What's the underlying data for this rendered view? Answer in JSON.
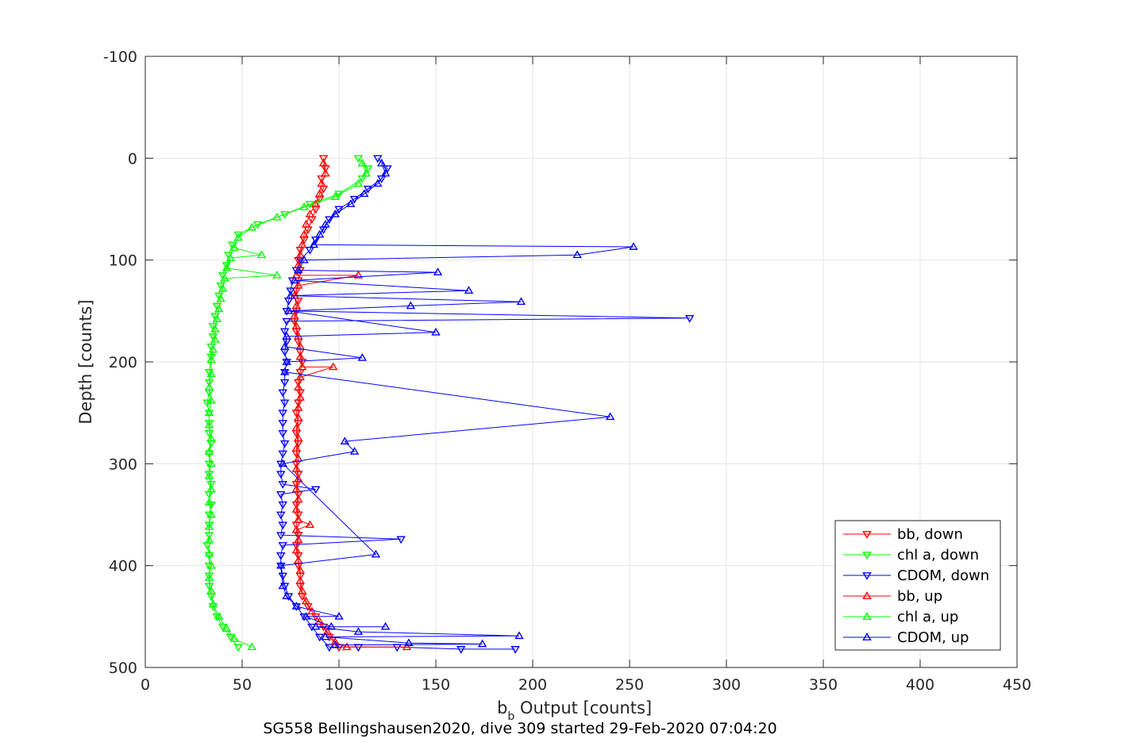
{
  "caption": "SG558 Bellingshausen2020, dive 309 started 29-Feb-2020 07:04:20",
  "chart_data": {
    "type": "scatter",
    "title": "",
    "xlabel_main": "b",
    "xlabel_sub": "b",
    "xlabel_rest": " Output [counts]",
    "ylabel": "Depth [counts]",
    "xlim": [
      0,
      450
    ],
    "ylim": [
      -100,
      500
    ],
    "y_reversed": true,
    "grid": true,
    "xticks": [
      0,
      50,
      100,
      150,
      200,
      250,
      300,
      350,
      400,
      450
    ],
    "yticks": [
      -100,
      0,
      100,
      200,
      300,
      400,
      500
    ],
    "legend_position": "bottom-right",
    "legend": [
      "bb, down",
      "chl a, down",
      "CDOM, down",
      "bb, up",
      "chl a, up",
      "CDOM, up"
    ],
    "series": [
      {
        "name": "bb, down",
        "color": "#ff0000",
        "marker": "triangle-down",
        "points": [
          [
            92,
            0
          ],
          [
            93,
            10
          ],
          [
            91,
            20
          ],
          [
            92,
            30
          ],
          [
            90,
            40
          ],
          [
            88,
            50
          ],
          [
            86,
            60
          ],
          [
            84,
            70
          ],
          [
            82,
            80
          ],
          [
            80,
            90
          ],
          [
            79,
            100
          ],
          [
            80,
            110
          ],
          [
            79,
            120
          ],
          [
            78,
            130
          ],
          [
            79,
            140
          ],
          [
            78,
            150
          ],
          [
            77,
            160
          ],
          [
            78,
            170
          ],
          [
            79,
            180
          ],
          [
            80,
            190
          ],
          [
            81,
            200
          ],
          [
            80,
            210
          ],
          [
            79,
            220
          ],
          [
            80,
            230
          ],
          [
            79,
            240
          ],
          [
            78,
            250
          ],
          [
            79,
            260
          ],
          [
            78,
            270
          ],
          [
            79,
            280
          ],
          [
            78,
            290
          ],
          [
            78,
            300
          ],
          [
            79,
            310
          ],
          [
            78,
            320
          ],
          [
            79,
            330
          ],
          [
            78,
            340
          ],
          [
            79,
            350
          ],
          [
            78,
            360
          ],
          [
            79,
            370
          ],
          [
            78,
            380
          ],
          [
            79,
            390
          ],
          [
            79,
            400
          ],
          [
            80,
            410
          ],
          [
            80,
            420
          ],
          [
            81,
            430
          ],
          [
            84,
            440
          ],
          [
            88,
            450
          ],
          [
            92,
            460
          ],
          [
            95,
            470
          ],
          [
            100,
            480
          ]
        ]
      },
      {
        "name": "chl a, down",
        "color": "#00ff00",
        "marker": "triangle-down",
        "points": [
          [
            110,
            0
          ],
          [
            115,
            10
          ],
          [
            112,
            20
          ],
          [
            100,
            35
          ],
          [
            85,
            45
          ],
          [
            72,
            55
          ],
          [
            58,
            65
          ],
          [
            48,
            75
          ],
          [
            45,
            85
          ],
          [
            43,
            95
          ],
          [
            42,
            105
          ],
          [
            40,
            115
          ],
          [
            39,
            125
          ],
          [
            38,
            135
          ],
          [
            37,
            145
          ],
          [
            36,
            155
          ],
          [
            35,
            165
          ],
          [
            35,
            175
          ],
          [
            34,
            185
          ],
          [
            34,
            195
          ],
          [
            33,
            210
          ],
          [
            33,
            220
          ],
          [
            33,
            230
          ],
          [
            32,
            240
          ],
          [
            33,
            250
          ],
          [
            33,
            260
          ],
          [
            33,
            270
          ],
          [
            34,
            280
          ],
          [
            33,
            290
          ],
          [
            33,
            300
          ],
          [
            33,
            310
          ],
          [
            34,
            320
          ],
          [
            33,
            330
          ],
          [
            34,
            340
          ],
          [
            33,
            350
          ],
          [
            33,
            360
          ],
          [
            33,
            370
          ],
          [
            32,
            380
          ],
          [
            33,
            390
          ],
          [
            33,
            400
          ],
          [
            33,
            410
          ],
          [
            33,
            420
          ],
          [
            34,
            430
          ],
          [
            35,
            440
          ],
          [
            37,
            450
          ],
          [
            40,
            460
          ],
          [
            44,
            470
          ],
          [
            48,
            480
          ]
        ]
      },
      {
        "name": "CDOM, down",
        "color": "#0000ff",
        "marker": "triangle-down",
        "points": [
          [
            120,
            0
          ],
          [
            125,
            10
          ],
          [
            122,
            20
          ],
          [
            115,
            30
          ],
          [
            108,
            40
          ],
          [
            100,
            50
          ],
          [
            95,
            60
          ],
          [
            92,
            70
          ],
          [
            88,
            80
          ],
          [
            85,
            90
          ],
          [
            80,
            100
          ],
          [
            78,
            110
          ],
          [
            76,
            120
          ],
          [
            75,
            130
          ],
          [
            74,
            140
          ],
          [
            73,
            150
          ],
          [
            281,
            157
          ],
          [
            73,
            160
          ],
          [
            72,
            170
          ],
          [
            73,
            180
          ],
          [
            72,
            190
          ],
          [
            73,
            200
          ],
          [
            72,
            210
          ],
          [
            72,
            220
          ],
          [
            71,
            230
          ],
          [
            72,
            240
          ],
          [
            71,
            250
          ],
          [
            71,
            260
          ],
          [
            71,
            270
          ],
          [
            72,
            280
          ],
          [
            71,
            290
          ],
          [
            70,
            300
          ],
          [
            70,
            310
          ],
          [
            71,
            320
          ],
          [
            70,
            330
          ],
          [
            71,
            340
          ],
          [
            70,
            350
          ],
          [
            71,
            360
          ],
          [
            70,
            370
          ],
          [
            71,
            380
          ],
          [
            70,
            390
          ],
          [
            70,
            400
          ],
          [
            71,
            410
          ],
          [
            72,
            420
          ],
          [
            74,
            430
          ],
          [
            78,
            440
          ],
          [
            82,
            450
          ],
          [
            86,
            460
          ],
          [
            90,
            470
          ],
          [
            95,
            480
          ],
          [
            132,
            374
          ],
          [
            88,
            325
          ],
          [
            110,
            480
          ],
          [
            130,
            480
          ],
          [
            163,
            482
          ],
          [
            191,
            482
          ]
        ]
      },
      {
        "name": "bb, up",
        "color": "#ff0000",
        "marker": "triangle-up",
        "points": [
          [
            92,
            5
          ],
          [
            93,
            15
          ],
          [
            91,
            25
          ],
          [
            90,
            35
          ],
          [
            88,
            45
          ],
          [
            85,
            55
          ],
          [
            83,
            65
          ],
          [
            82,
            75
          ],
          [
            81,
            85
          ],
          [
            80,
            95
          ],
          [
            79,
            105
          ],
          [
            78,
            115
          ],
          [
            79,
            125
          ],
          [
            77,
            135
          ],
          [
            78,
            145
          ],
          [
            77,
            155
          ],
          [
            78,
            165
          ],
          [
            79,
            175
          ],
          [
            80,
            185
          ],
          [
            80,
            195
          ],
          [
            81,
            205
          ],
          [
            80,
            215
          ],
          [
            79,
            225
          ],
          [
            80,
            235
          ],
          [
            79,
            245
          ],
          [
            79,
            255
          ],
          [
            78,
            265
          ],
          [
            79,
            275
          ],
          [
            78,
            285
          ],
          [
            79,
            295
          ],
          [
            78,
            305
          ],
          [
            79,
            315
          ],
          [
            78,
            325
          ],
          [
            79,
            335
          ],
          [
            78,
            345
          ],
          [
            79,
            355
          ],
          [
            78,
            365
          ],
          [
            79,
            375
          ],
          [
            78,
            385
          ],
          [
            79,
            395
          ],
          [
            80,
            405
          ],
          [
            80,
            415
          ],
          [
            81,
            425
          ],
          [
            83,
            435
          ],
          [
            86,
            445
          ],
          [
            90,
            455
          ],
          [
            94,
            465
          ],
          [
            98,
            475
          ],
          [
            104,
            480
          ],
          [
            135,
            480
          ],
          [
            110,
            115
          ],
          [
            97,
            205
          ],
          [
            85,
            360
          ]
        ]
      },
      {
        "name": "chl a, up",
        "color": "#00ff00",
        "marker": "triangle-up",
        "points": [
          [
            112,
            5
          ],
          [
            114,
            15
          ],
          [
            110,
            25
          ],
          [
            98,
            38
          ],
          [
            82,
            48
          ],
          [
            68,
            58
          ],
          [
            55,
            68
          ],
          [
            48,
            78
          ],
          [
            46,
            88
          ],
          [
            44,
            98
          ],
          [
            42,
            108
          ],
          [
            41,
            118
          ],
          [
            40,
            128
          ],
          [
            39,
            138
          ],
          [
            38,
            148
          ],
          [
            37,
            158
          ],
          [
            36,
            168
          ],
          [
            36,
            178
          ],
          [
            35,
            188
          ],
          [
            34,
            198
          ],
          [
            34,
            212
          ],
          [
            33,
            225
          ],
          [
            34,
            238
          ],
          [
            33,
            250
          ],
          [
            33,
            262
          ],
          [
            34,
            275
          ],
          [
            33,
            288
          ],
          [
            34,
            300
          ],
          [
            33,
            312
          ],
          [
            34,
            325
          ],
          [
            33,
            338
          ],
          [
            34,
            350
          ],
          [
            33,
            362
          ],
          [
            33,
            375
          ],
          [
            33,
            388
          ],
          [
            34,
            400
          ],
          [
            33,
            412
          ],
          [
            34,
            425
          ],
          [
            35,
            438
          ],
          [
            38,
            450
          ],
          [
            42,
            462
          ],
          [
            46,
            472
          ],
          [
            55,
            480
          ],
          [
            68,
            115
          ],
          [
            60,
            95
          ]
        ]
      },
      {
        "name": "CDOM, up",
        "color": "#0000ff",
        "marker": "triangle-up",
        "points": [
          [
            122,
            5
          ],
          [
            124,
            15
          ],
          [
            120,
            25
          ],
          [
            113,
            35
          ],
          [
            106,
            45
          ],
          [
            98,
            55
          ],
          [
            93,
            65
          ],
          [
            90,
            75
          ],
          [
            87,
            85
          ],
          [
            252,
            87
          ],
          [
            223,
            95
          ],
          [
            82,
            100
          ],
          [
            79,
            110
          ],
          [
            151,
            112
          ],
          [
            77,
            120
          ],
          [
            167,
            130
          ],
          [
            75,
            135
          ],
          [
            194,
            141
          ],
          [
            137,
            145
          ],
          [
            74,
            150
          ],
          [
            150,
            171
          ],
          [
            73,
            175
          ],
          [
            72,
            185
          ],
          [
            112,
            196
          ],
          [
            73,
            200
          ],
          [
            72,
            210
          ],
          [
            240,
            254
          ],
          [
            103,
            278
          ],
          [
            108,
            288
          ],
          [
            71,
            300
          ],
          [
            119,
            389
          ],
          [
            70,
            400
          ],
          [
            71,
            420
          ],
          [
            73,
            430
          ],
          [
            100,
            450
          ],
          [
            96,
            460
          ],
          [
            110,
            465
          ],
          [
            124,
            460
          ],
          [
            193,
            469
          ],
          [
            174,
            477
          ],
          [
            136,
            476
          ],
          [
            78,
            440
          ],
          [
            83,
            450
          ],
          [
            88,
            460
          ],
          [
            93,
            470
          ],
          [
            98,
            478
          ]
        ]
      }
    ]
  }
}
